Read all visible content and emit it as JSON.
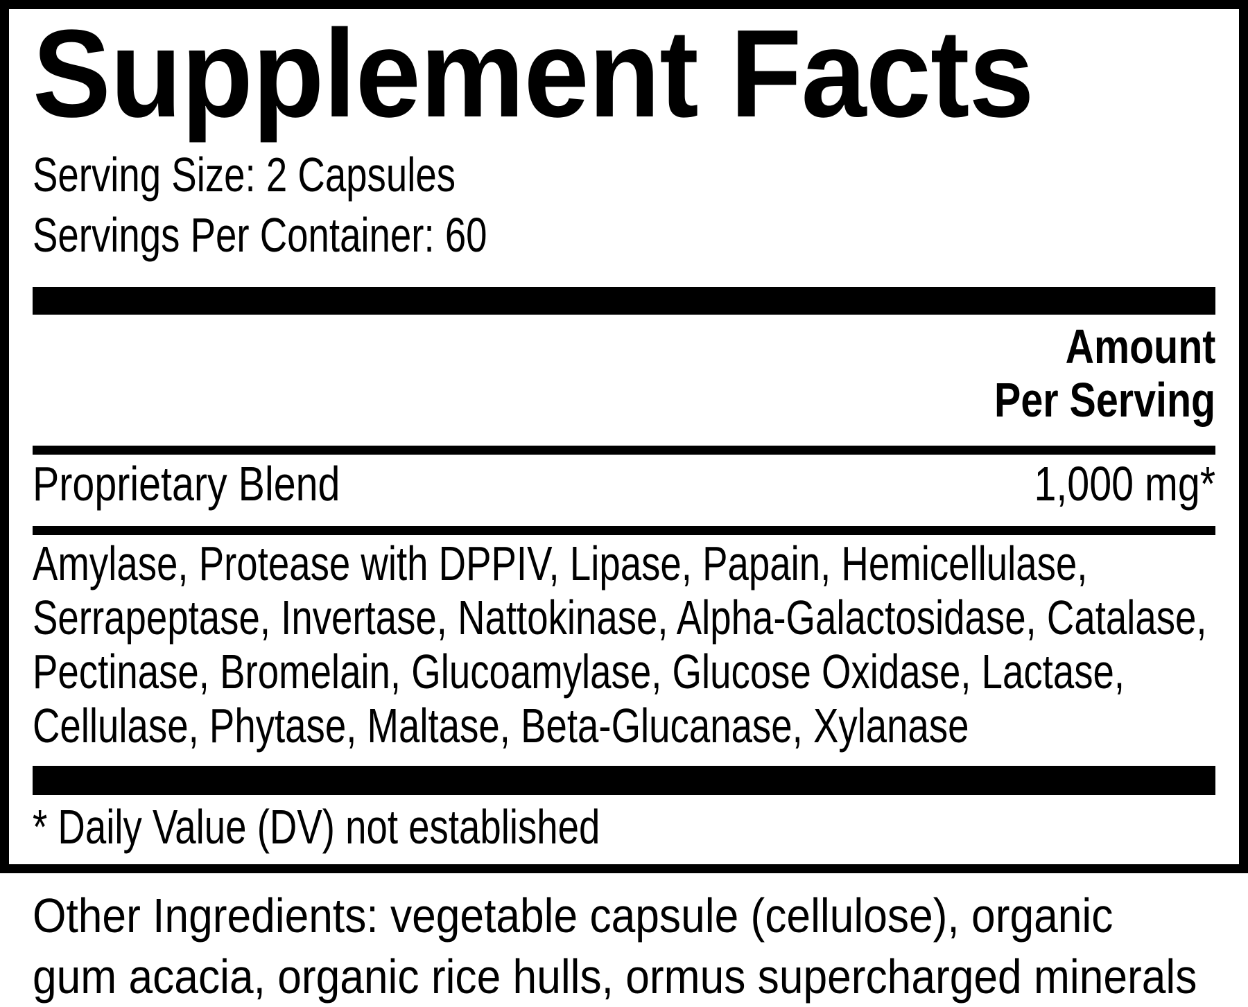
{
  "colors": {
    "text": "#000000",
    "background": "#ffffff"
  },
  "panel": {
    "title": "Supplement Facts",
    "serving_size": "Serving Size: 2 Capsules",
    "servings_per_container": "Servings Per Container: 60",
    "amount_header": {
      "line1": "Amount",
      "line2": "Per Serving"
    },
    "proprietary_blend": {
      "name": "Proprietary Blend",
      "amount_per_serving": "1,000 mg*"
    },
    "blend_ingredients_lines": [
      "Amylase, Protease with DPPIV, Lipase, Papain, Hemicellulase,",
      "Serrapeptase, Invertase, Nattokinase, Alpha-Galactosidase, Catalase,",
      "Pectinase, Bromelain, Glucoamylase, Glucose Oxidase, Lactase,",
      "Cellulase, Phytase, Maltase, Beta-Glucanase, Xylanase"
    ],
    "footnote": "* Daily Value (DV) not established"
  },
  "other_ingredients": {
    "lines": [
      "Other Ingredients: vegetable capsule (cellulose), organic",
      "gum acacia, organic rice hulls, ormus supercharged minerals"
    ]
  }
}
